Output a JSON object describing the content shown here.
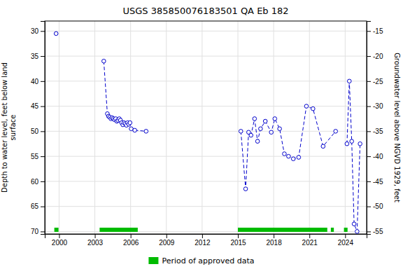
{
  "chart_data": {
    "type": "line",
    "title": "USGS 385850076183501 QA Eb 182",
    "ylabel": "Depth to water level, feet below land\nsurface",
    "y2label": "Groundwater level above NGVD 1929, feet",
    "xlim": [
      1998.8,
      2025.8
    ],
    "xticks": [
      2000,
      2003,
      2006,
      2009,
      2012,
      2015,
      2018,
      2021,
      2024
    ],
    "ylim": [
      70.5,
      28.0
    ],
    "yticks": [
      30,
      35,
      40,
      45,
      50,
      55,
      60,
      65,
      70
    ],
    "y2lim": [
      -55.5,
      -13.0
    ],
    "y2ticks": [
      -15,
      -20,
      -25,
      -30,
      -35,
      -40,
      -45,
      -50,
      -55
    ],
    "grid": true,
    "series": [
      {
        "type": "line",
        "color": "#0000CC",
        "marker": "circle-open",
        "line_style": "dashed",
        "x": [
          1999.75
        ],
        "values": [
          30.5
        ]
      },
      {
        "type": "line",
        "color": "#0000CC",
        "marker": "circle-open",
        "line_style": "dashed",
        "x": [
          2003.75,
          2004.05,
          2004.15,
          2004.25,
          2004.35,
          2004.45,
          2004.55,
          2004.65,
          2004.75,
          2004.85,
          2004.95,
          2005.05,
          2005.15,
          2005.25,
          2005.35,
          2005.45,
          2005.55,
          2005.65,
          2005.75,
          2005.85,
          2005.95,
          2006.05,
          2006.35,
          2007.3
        ],
        "values": [
          36.0,
          46.5,
          47.0,
          47.2,
          47.5,
          47.3,
          47.5,
          47.7,
          47.5,
          48.0,
          47.8,
          47.5,
          47.8,
          48.3,
          48.7,
          48.3,
          48.5,
          48.8,
          48.3,
          48.6,
          48.3,
          49.5,
          49.8,
          50.0
        ]
      },
      {
        "type": "line",
        "color": "#0000CC",
        "marker": "circle-open",
        "line_style": "dashed",
        "x": [
          2015.25,
          2015.65,
          2015.9,
          2016.1,
          2016.4,
          2016.65,
          2016.9,
          2017.3,
          2017.8,
          2018.1,
          2018.5,
          2018.9,
          2019.25,
          2019.65,
          2020.1,
          2020.75,
          2021.3,
          2022.15,
          2023.2
        ],
        "values": [
          50.0,
          61.5,
          50.2,
          50.8,
          47.5,
          52.0,
          49.5,
          48.0,
          50.2,
          47.5,
          49.5,
          54.5,
          55.0,
          55.5,
          55.2,
          45.0,
          45.5,
          53.0,
          50.0
        ]
      },
      {
        "type": "line",
        "color": "#0000CC",
        "marker": "circle-open",
        "line_style": "dashed",
        "x": [
          2024.15,
          2024.35,
          2024.55,
          2024.75,
          2025.0,
          2025.25
        ],
        "values": [
          52.5,
          40.0,
          52.0,
          68.5,
          70.0,
          52.5
        ]
      },
      {
        "type": "span",
        "name": "Period of approved data",
        "color": "#00BB00",
        "values": [
          [
            1999.6,
            1999.95
          ],
          [
            2003.4,
            2006.6
          ],
          [
            2015.0,
            2022.5
          ],
          [
            2022.8,
            2023.05
          ],
          [
            2023.9,
            2024.2
          ]
        ]
      }
    ]
  }
}
